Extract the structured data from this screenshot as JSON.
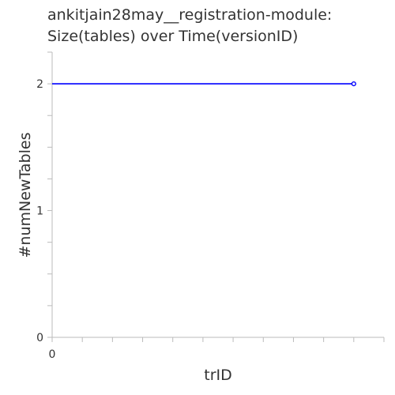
{
  "chart_data": {
    "type": "line",
    "title": [
      "ankitjain28may__registration-module:",
      "Size(tables) over Time(versionID)"
    ],
    "xlabel": "trID",
    "ylabel": "#numNewTables",
    "xlim": [
      0,
      11
    ],
    "ylim": [
      0,
      2.25
    ],
    "x_tick_labels": [
      "0"
    ],
    "y_tick_labels": [
      "0",
      "1",
      "2"
    ],
    "series": [
      {
        "x": [
          0,
          10
        ],
        "y": [
          2,
          2
        ],
        "color": "#0000ff"
      }
    ],
    "grid": false,
    "colors": {
      "axis": "#bbbbbb",
      "line": "#0000ff"
    }
  }
}
